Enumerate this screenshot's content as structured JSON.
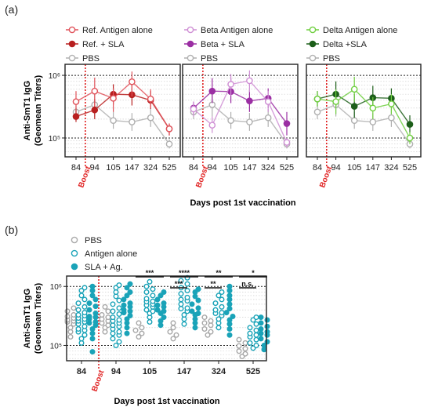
{
  "figure": {
    "panel_a_label": "(a)",
    "panel_b_label": "(b)"
  },
  "chart_data": [
    {
      "type": "line",
      "panel": "(a)",
      "ylabel": "Anti-SmT1  IgG (Geomean Titers)",
      "xlabel": "Days post 1st vaccination",
      "x_categories": [
        "84",
        "94",
        "105",
        "147",
        "324",
        "525"
      ],
      "y_scale": "log",
      "ylim": [
        50000,
        1500000
      ],
      "y_ticks": [
        {
          "value": 100000,
          "label": "10⁵"
        },
        {
          "value": 1000000,
          "label": "10⁶"
        }
      ],
      "boost_label": "Boost",
      "boost_between": [
        "84",
        "94"
      ],
      "grid": "dotted horizontal",
      "subplots": [
        {
          "series": [
            {
              "name": "Ref. Antigen alone",
              "color": "#e0525a",
              "marker": "open-circle",
              "values": [
                380000,
                560000,
                430000,
                790000,
                420000,
                140000
              ],
              "err_low": [
                280000,
                320000,
                260000,
                460000,
                300000,
                110000
              ],
              "err_high": [
                560000,
                920000,
                620000,
                1150000,
                600000,
                170000
              ]
            },
            {
              "name": "Ref. + SLA",
              "color": "#b82020",
              "marker": "filled-circle",
              "values": [
                220000,
                280000,
                500000,
                490000,
                400000,
                140000
              ],
              "err_low": [
                180000,
                200000,
                340000,
                330000,
                290000,
                110000
              ],
              "err_high": [
                300000,
                420000,
                720000,
                720000,
                560000,
                170000
              ]
            },
            {
              "name": "PBS",
              "color": "#b0b0b0",
              "marker": "open-circle",
              "values": [
                260000,
                340000,
                190000,
                180000,
                210000,
                80000
              ],
              "err_low": [
                200000,
                220000,
                140000,
                130000,
                150000,
                68000
              ],
              "err_high": [
                330000,
                500000,
                260000,
                250000,
                290000,
                95000
              ]
            }
          ]
        },
        {
          "series": [
            {
              "name": "Beta Antigen alone",
              "color": "#cf8fd4",
              "marker": "open-circle",
              "values": [
                290000,
                160000,
                720000,
                820000,
                380000,
                85000
              ],
              "err_low": [
                220000,
                120000,
                480000,
                540000,
                260000,
                70000
              ],
              "err_high": [
                380000,
                220000,
                1050000,
                1200000,
                560000,
                100000
              ]
            },
            {
              "name": "Beta + SLA",
              "color": "#9b2fa3",
              "marker": "filled-circle",
              "values": [
                300000,
                560000,
                550000,
                390000,
                430000,
                170000
              ],
              "err_low": [
                240000,
                360000,
                360000,
                260000,
                300000,
                110000
              ],
              "err_high": [
                380000,
                900000,
                900000,
                580000,
                620000,
                260000
              ]
            },
            {
              "name": "PBS",
              "color": "#b0b0b0",
              "marker": "open-circle",
              "values": [
                260000,
                340000,
                190000,
                180000,
                210000,
                80000
              ],
              "err_low": [
                200000,
                220000,
                140000,
                130000,
                150000,
                68000
              ],
              "err_high": [
                330000,
                500000,
                260000,
                250000,
                290000,
                95000
              ]
            }
          ]
        },
        {
          "series": [
            {
              "name": "Delta Antigen alone",
              "color": "#6fcf3f",
              "marker": "open-circle",
              "values": [
                420000,
                380000,
                600000,
                300000,
                350000,
                100000
              ],
              "err_low": [
                320000,
                240000,
                380000,
                200000,
                240000,
                80000
              ],
              "err_high": [
                560000,
                600000,
                950000,
                450000,
                500000,
                125000
              ]
            },
            {
              "name": "Delta +SLA",
              "color": "#1d5f1a",
              "marker": "filled-circle",
              "values": [
                420000,
                500000,
                320000,
                440000,
                430000,
                165000
              ],
              "err_low": [
                320000,
                320000,
                210000,
                290000,
                300000,
                120000
              ],
              "err_high": [
                560000,
                800000,
                500000,
                680000,
                620000,
                230000
              ]
            },
            {
              "name": "PBS",
              "color": "#b0b0b0",
              "marker": "open-circle",
              "values": [
                260000,
                340000,
                190000,
                180000,
                210000,
                80000
              ],
              "err_low": [
                200000,
                220000,
                140000,
                130000,
                150000,
                68000
              ],
              "err_high": [
                330000,
                500000,
                260000,
                250000,
                290000,
                95000
              ]
            }
          ]
        }
      ]
    },
    {
      "type": "scatter",
      "panel": "(b)",
      "ylabel": "Anti-SmT1  IgG (Geomean Titers)",
      "xlabel": "Days post 1st vaccination",
      "x_categories": [
        "84",
        "94",
        "105",
        "147",
        "324",
        "525"
      ],
      "y_scale": "log",
      "ylim": [
        55000,
        1500000
      ],
      "y_ticks": [
        {
          "value": 100000,
          "label": "10⁵"
        },
        {
          "value": 1000000,
          "label": "10⁶"
        }
      ],
      "boost_label": "Boost",
      "boost_between": [
        "84",
        "94"
      ],
      "grid": "dotted horizontal",
      "series": [
        {
          "name": "PBS",
          "color": "#a8a8a8",
          "marker": "open-circle",
          "values": [
            [
              140000,
              170000,
              200000,
              230000,
              260000,
              290000,
              330000,
              380000,
              430000,
              270000,
              310000,
              250000
            ],
            [
              170000,
              200000,
              240000,
              280000,
              330000,
              380000,
              450000,
              300000,
              260000,
              220000
            ],
            [
              140000,
              160000,
              180000,
              200000,
              240000
            ],
            [
              130000,
              150000,
              170000,
              200000,
              240000
            ],
            [
              150000,
              170000,
              190000,
              220000,
              260000,
              300000,
              240000
            ],
            [
              65000,
              72000,
              80000,
              88000,
              98000,
              110000,
              125000
            ]
          ]
        },
        {
          "name": "Antigen alone",
          "color": "#1aa3b8",
          "marker": "open-circle",
          "values": [
            [
              110000,
              130000,
              150000,
              170000,
              190000,
              210000,
              230000,
              260000,
              290000,
              320000,
              360000,
              400000,
              450000,
              520000,
              600000,
              700000,
              850000,
              950000,
              250000,
              280000,
              330000,
              180000
            ],
            [
              100000,
              115000,
              130000,
              150000,
              170000,
              190000,
              210000,
              240000,
              270000,
              300000,
              340000,
              380000,
              430000,
              500000,
              580000,
              680000,
              800000,
              950000,
              1050000,
              220000,
              260000,
              160000
            ],
            [
              250000,
              300000,
              350000,
              400000,
              450000,
              500000,
              560000,
              620000,
              700000,
              800000,
              900000,
              1000000,
              1200000,
              380000,
              480000,
              550000
            ],
            [
              230000,
              280000,
              330000,
              380000,
              430000,
              500000,
              570000,
              650000,
              750000,
              850000,
              950000,
              1100000,
              1250000,
              1400000,
              420000,
              600000
            ],
            [
              200000,
              240000,
              280000,
              320000,
              360000,
              400000,
              450000,
              520000,
              600000,
              700000,
              800000,
              350000
            ],
            [
              90000,
              100000,
              110000,
              125000,
              140000,
              160000,
              180000,
              200000,
              230000,
              270000,
              300000,
              150000
            ]
          ]
        },
        {
          "name": "SLA + Ag.",
          "color": "#1aa3b8",
          "marker": "filled-circle",
          "values": [
            [
              78000,
              130000,
              160000,
              190000,
              220000,
              250000,
              280000,
              310000,
              350000,
              400000,
              460000,
              520000,
              600000,
              700000,
              850000,
              1000000,
              300000,
              240000
            ],
            [
              160000,
              200000,
              240000,
              280000,
              320000,
              360000,
              400000,
              450000,
              520000,
              600000,
              700000,
              800000,
              950000,
              1100000,
              380000,
              480000
            ],
            [
              220000,
              260000,
              300000,
              350000,
              400000,
              450000,
              520000,
              600000,
              700000,
              800000,
              380000,
              480000
            ],
            [
              200000,
              240000,
              280000,
              330000,
              380000,
              430000,
              500000,
              580000,
              680000,
              800000,
              900000,
              350000
            ],
            [
              150000,
              190000,
              230000,
              270000,
              310000,
              360000,
              420000,
              500000,
              600000,
              700000,
              850000,
              1000000
            ],
            [
              85000,
              100000,
              115000,
              130000,
              150000,
              170000,
              190000,
              210000,
              240000,
              270000,
              300000,
              160000
            ]
          ]
        }
      ],
      "significance": [
        {
          "day": "105",
          "pairs": [
            {
              "label": "***",
              "span": "PBS-SLA"
            }
          ]
        },
        {
          "day": "147",
          "pairs": [
            {
              "label": "****",
              "span": "PBS-SLA"
            },
            {
              "label": "***",
              "span": "PBS-Ag"
            }
          ]
        },
        {
          "day": "324",
          "pairs": [
            {
              "label": "**",
              "span": "PBS-SLA"
            },
            {
              "label": "**",
              "span": "PBS-Ag"
            }
          ]
        },
        {
          "day": "525",
          "pairs": [
            {
              "label": "*",
              "span": "PBS-SLA"
            },
            {
              "label": "n.s.",
              "span": "PBS-Ag"
            }
          ]
        }
      ]
    }
  ]
}
